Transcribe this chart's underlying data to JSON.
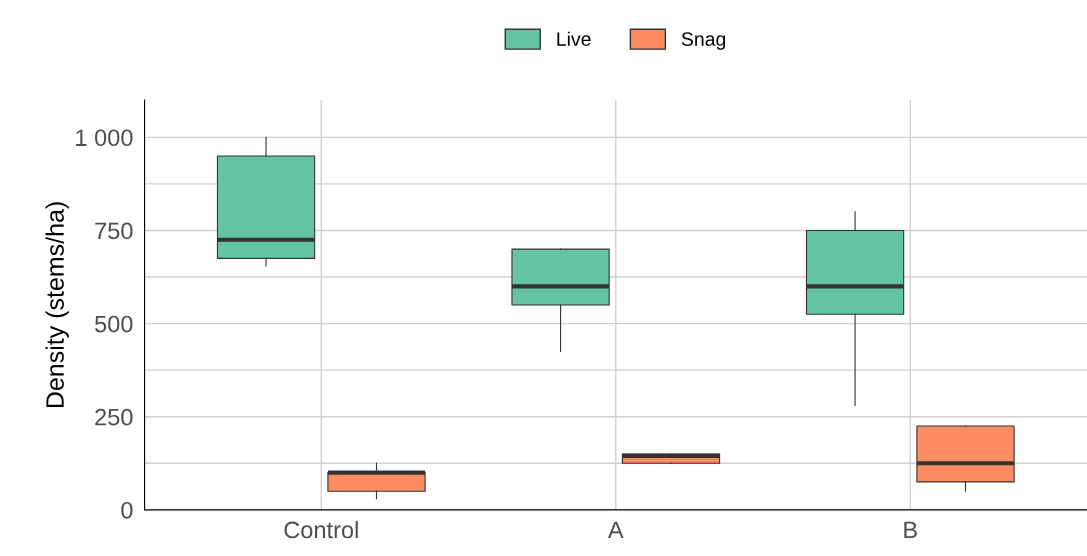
{
  "chart_data": {
    "type": "box",
    "ylabel": "Density (stems/ha)",
    "categories": [
      "Control",
      "A",
      "B"
    ],
    "series": [
      {
        "name": "Live",
        "color": "#66c2a5",
        "boxes": [
          {
            "low": 655,
            "q1": 675,
            "median": 725,
            "q3": 950,
            "high": 1000
          },
          {
            "low": 425,
            "q1": 550,
            "median": 600,
            "q3": 700,
            "high": 700
          },
          {
            "low": 280,
            "q1": 525,
            "median": 600,
            "q3": 750,
            "high": 800
          }
        ]
      },
      {
        "name": "Snag",
        "color": "#fc8d62",
        "boxes": [
          {
            "low": 30,
            "q1": 50,
            "median": 100,
            "q3": 100,
            "high": 125
          },
          {
            "low": 125,
            "q1": 125,
            "median": 145,
            "q3": 150,
            "high": 150
          },
          {
            "low": 50,
            "q1": 75,
            "median": 125,
            "q3": 225,
            "high": 225
          }
        ]
      }
    ],
    "ylim": [
      0,
      1100
    ],
    "yticks": [
      0,
      {
        "value": 125,
        "label": null
      },
      250,
      {
        "value": 375,
        "label": null
      },
      500,
      {
        "value": 625,
        "label": null
      },
      750,
      {
        "value": 875,
        "label": null
      },
      {
        "value": 1000,
        "label": "1 000"
      }
    ],
    "grid": true,
    "legend": "top"
  }
}
